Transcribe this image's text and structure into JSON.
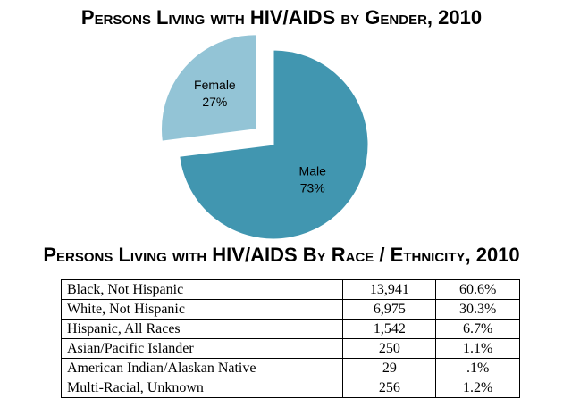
{
  "chart_data": [
    {
      "type": "pie",
      "title": "Persons Living with HIV/AIDS by Gender, 2010",
      "categories": [
        "Male",
        "Female"
      ],
      "values": [
        73,
        27
      ],
      "labels": [
        "73%",
        "27%"
      ],
      "exploded": [
        "Female"
      ],
      "colors": [
        "#4196b0",
        "#93c4d6"
      ]
    },
    {
      "type": "table",
      "title": "Persons Living with HIV/AIDS By Race / Ethnicity, 2010",
      "rows": [
        [
          "Black, Not Hispanic",
          "13,941",
          "60.6%"
        ],
        [
          "White, Not Hispanic",
          "6,975",
          "30.3%"
        ],
        [
          "Hispanic, All Races",
          "1,542",
          "6.7%"
        ],
        [
          "Asian/Pacific Islander",
          "250",
          "1.1%"
        ],
        [
          "American Indian/Alaskan Native",
          "29",
          ".1%"
        ],
        [
          "Multi-Racial, Unknown",
          "256",
          "1.2%"
        ]
      ]
    }
  ]
}
